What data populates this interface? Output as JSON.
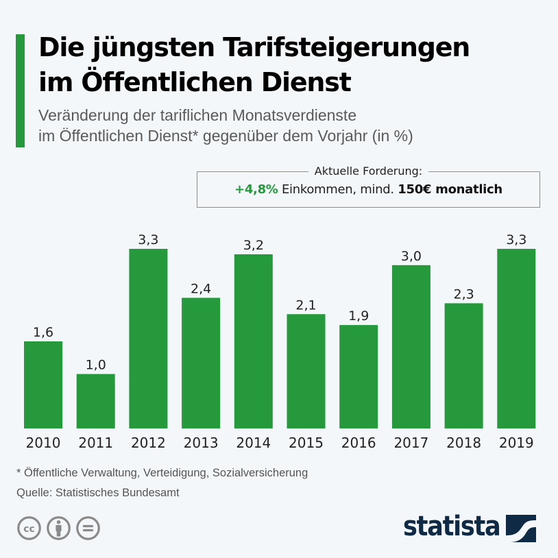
{
  "header": {
    "accent_color": "#25993b",
    "title_line1": "Die jüngsten Tarifsteigerungen",
    "title_line2": "im Öffentlichen Dienst",
    "subtitle_line1": "Veränderung der tariflichen Monatsverdienste",
    "subtitle_line2": "im Öffentlichen Dienst* gegenüber dem Vorjahr (in %)"
  },
  "demand_box": {
    "caption": "Aktuelle Forderung:",
    "highlight": "+4,8%",
    "middle": " Einkommen, mind. ",
    "bold": "150€ monatlich"
  },
  "chart_data": {
    "type": "bar",
    "title": "Die jüngsten Tarifsteigerungen im Öffentlichen Dienst",
    "subtitle": "Veränderung der tariflichen Monatsverdienste im Öffentlichen Dienst* gegenüber dem Vorjahr (in %)",
    "xlabel": "",
    "ylabel": "",
    "categories": [
      "2010",
      "2011",
      "2012",
      "2013",
      "2014",
      "2015",
      "2016",
      "2017",
      "2018",
      "2019"
    ],
    "values": [
      1.6,
      1.0,
      3.3,
      2.4,
      3.2,
      2.1,
      1.9,
      3.0,
      2.3,
      3.3
    ],
    "value_labels": [
      "1,6",
      "1,0",
      "3,3",
      "2,4",
      "3,2",
      "2,1",
      "1,9",
      "3,0",
      "2,3",
      "3,3"
    ],
    "ylim": [
      0,
      3.3
    ],
    "grid": false,
    "legend": "none",
    "bar_color": "#25993b"
  },
  "footer": {
    "footnote": "* Öffentliche Verwaltung, Verteidigung, Sozialversicherung",
    "source": "Quelle: Statistisches Bundesamt",
    "license_icons": [
      "cc-icon",
      "by-icon",
      "nd-icon"
    ],
    "brand": "statista",
    "brand_color": "#0f2a44"
  }
}
